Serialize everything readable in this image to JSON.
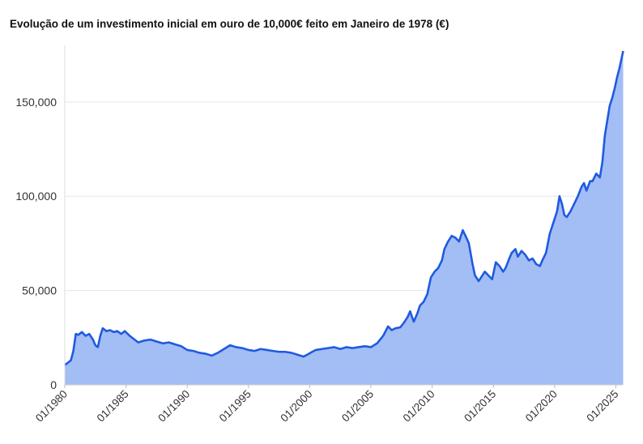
{
  "chart_data": {
    "type": "area",
    "title": "Evolução de um investimento inicial em ouro de 10,000€ feito em Janeiro de 1978 (€)",
    "xlabel": "",
    "ylabel": "",
    "x_range": [
      "1980-01",
      "2025-07"
    ],
    "ylim": [
      0,
      180000
    ],
    "y_ticks": [
      0,
      50000,
      100000,
      150000
    ],
    "y_tick_labels": [
      "0",
      "50,000",
      "100,000",
      "150,000"
    ],
    "x_ticks": [
      "01/1980",
      "01/1985",
      "01/1990",
      "01/1995",
      "01/2000",
      "01/2005",
      "01/2010",
      "01/2015",
      "01/2020",
      "01/2025"
    ],
    "grid": true,
    "legend": "none",
    "colors": {
      "line": "#1f5ae0",
      "fill": "#a3bdf5",
      "grid": "#e6e6e6"
    },
    "x": [
      1980.0,
      1980.2,
      1980.5,
      1980.7,
      1980.9,
      1981.1,
      1981.4,
      1981.7,
      1982.0,
      1982.3,
      1982.5,
      1982.7,
      1982.9,
      1983.1,
      1983.4,
      1983.7,
      1984.0,
      1984.3,
      1984.6,
      1984.9,
      1985.3,
      1985.7,
      1986.0,
      1986.5,
      1987.0,
      1987.5,
      1988.0,
      1988.5,
      1989.0,
      1989.5,
      1990.0,
      1990.5,
      1991.0,
      1991.5,
      1992.0,
      1992.5,
      1993.0,
      1993.5,
      1994.0,
      1994.5,
      1995.0,
      1995.5,
      1996.0,
      1996.5,
      1997.0,
      1997.5,
      1998.0,
      1998.5,
      1999.0,
      1999.5,
      1999.8,
      2000.2,
      2000.5,
      2001.0,
      2001.5,
      2002.0,
      2002.5,
      2003.0,
      2003.5,
      2004.0,
      2004.5,
      2005.0,
      2005.5,
      2006.0,
      2006.4,
      2006.7,
      2007.0,
      2007.4,
      2007.7,
      2008.0,
      2008.2,
      2008.5,
      2008.8,
      2009.0,
      2009.3,
      2009.6,
      2009.9,
      2010.2,
      2010.5,
      2010.8,
      2011.0,
      2011.3,
      2011.6,
      2011.9,
      2012.2,
      2012.5,
      2012.8,
      2013.0,
      2013.3,
      2013.5,
      2013.8,
      2014.0,
      2014.3,
      2014.6,
      2014.9,
      2015.2,
      2015.5,
      2015.8,
      2016.0,
      2016.3,
      2016.5,
      2016.8,
      2017.0,
      2017.3,
      2017.6,
      2017.9,
      2018.2,
      2018.5,
      2018.8,
      2019.0,
      2019.3,
      2019.6,
      2019.9,
      2020.2,
      2020.4,
      2020.6,
      2020.8,
      2021.0,
      2021.3,
      2021.6,
      2021.9,
      2022.2,
      2022.4,
      2022.6,
      2022.9,
      2023.1,
      2023.4,
      2023.7,
      2023.9,
      2024.1,
      2024.3,
      2024.5,
      2024.7,
      2024.9,
      2025.1,
      2025.3,
      2025.5,
      2025.6
    ],
    "values": [
      10500,
      11500,
      13000,
      18000,
      27000,
      26500,
      28000,
      26000,
      27000,
      24000,
      21000,
      20000,
      26000,
      30000,
      28500,
      29000,
      28000,
      28500,
      27000,
      28500,
      26000,
      24000,
      22500,
      23500,
      24000,
      23000,
      22000,
      22500,
      21500,
      20500,
      18500,
      18000,
      17000,
      16500,
      15500,
      17000,
      19000,
      21000,
      20000,
      19500,
      18500,
      18000,
      19000,
      18500,
      18000,
      17500,
      17500,
      17000,
      16000,
      15000,
      16000,
      17500,
      18500,
      19000,
      19500,
      20000,
      19000,
      20000,
      19500,
      20000,
      20500,
      20000,
      22000,
      26000,
      31000,
      29000,
      30000,
      30500,
      33000,
      36000,
      39000,
      33500,
      38000,
      42000,
      44000,
      48000,
      57000,
      60000,
      62000,
      66000,
      72000,
      76000,
      79000,
      78000,
      76000,
      82000,
      78000,
      75000,
      64000,
      58000,
      55000,
      57000,
      60000,
      58000,
      56000,
      65000,
      63000,
      60000,
      62000,
      67000,
      70000,
      72000,
      68000,
      71000,
      69000,
      66000,
      67000,
      64000,
      63000,
      66000,
      70000,
      80000,
      86000,
      92000,
      100000,
      96000,
      90000,
      89000,
      92000,
      96000,
      100000,
      105000,
      107000,
      103000,
      108000,
      108000,
      112000,
      110000,
      118000,
      132000,
      140000,
      148000,
      152000,
      157000,
      163000,
      168000,
      174000,
      177000
    ]
  }
}
